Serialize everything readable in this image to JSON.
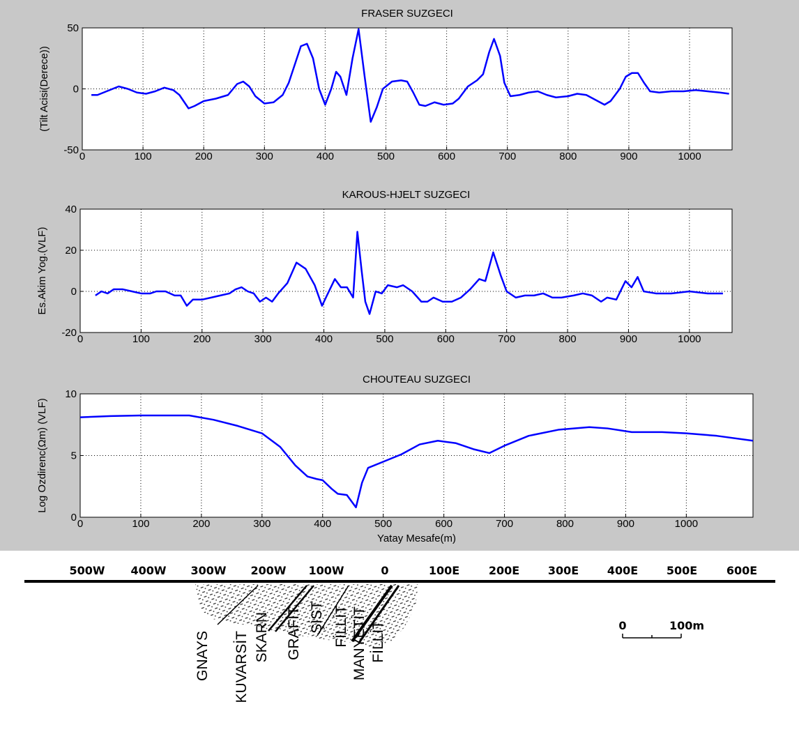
{
  "chart_data": [
    {
      "type": "line",
      "title": "FRASER SUZGECI",
      "ylabel": "(Tilt Acisi(Derece))",
      "color": "#0000ff",
      "grid": true,
      "xlim": [
        0,
        1070
      ],
      "xticks": [
        0,
        100,
        200,
        300,
        400,
        500,
        600,
        700,
        800,
        900,
        1000
      ],
      "ylim": [
        -50,
        50
      ],
      "yticks": [
        -50,
        0,
        50
      ],
      "x": [
        15,
        25,
        40,
        60,
        75,
        90,
        105,
        120,
        135,
        150,
        160,
        175,
        185,
        200,
        220,
        240,
        255,
        265,
        275,
        285,
        300,
        315,
        330,
        340,
        350,
        360,
        370,
        380,
        390,
        400,
        410,
        418,
        425,
        435,
        445,
        455,
        465,
        475,
        485,
        495,
        510,
        525,
        535,
        545,
        555,
        565,
        580,
        595,
        610,
        620,
        635,
        650,
        660,
        670,
        678,
        688,
        695,
        705,
        720,
        735,
        750,
        765,
        780,
        800,
        815,
        830,
        845,
        860,
        870,
        885,
        895,
        905,
        915,
        925,
        935,
        950,
        970,
        990,
        1010,
        1030,
        1050,
        1065
      ],
      "values": [
        -5,
        -5,
        -2,
        2,
        0,
        -3,
        -4,
        -2,
        1,
        -1,
        -5,
        -16,
        -14,
        -10,
        -8,
        -5,
        4,
        6,
        2,
        -6,
        -12,
        -11,
        -5,
        5,
        20,
        35,
        37,
        25,
        0,
        -13,
        0,
        14,
        10,
        -5,
        25,
        49,
        10,
        -27,
        -15,
        0,
        6,
        7,
        6,
        -3,
        -13,
        -14,
        -11,
        -13,
        -12,
        -8,
        2,
        7,
        12,
        30,
        41,
        27,
        5,
        -6,
        -5,
        -3,
        -2,
        -5,
        -7,
        -6,
        -4,
        -5,
        -9,
        -13,
        -10,
        0,
        10,
        13,
        13,
        5,
        -2,
        -3,
        -2,
        -2,
        -1,
        -2,
        -3,
        -4
      ]
    },
    {
      "type": "line",
      "title": "KAROUS-HJELT SUZGECI",
      "ylabel": "Es.Akim Yog.(VLF)",
      "color": "#0000ff",
      "grid": true,
      "xlim": [
        0,
        1070
      ],
      "xticks": [
        0,
        100,
        200,
        300,
        400,
        500,
        600,
        700,
        800,
        900,
        1000
      ],
      "ylim": [
        -20,
        40
      ],
      "yticks": [
        -20,
        0,
        20,
        40
      ],
      "x": [
        25,
        35,
        45,
        55,
        70,
        85,
        100,
        115,
        125,
        140,
        155,
        165,
        175,
        185,
        200,
        215,
        230,
        245,
        255,
        265,
        275,
        285,
        295,
        305,
        315,
        325,
        340,
        355,
        370,
        385,
        397,
        405,
        418,
        428,
        438,
        448,
        455,
        462,
        468,
        475,
        485,
        495,
        505,
        520,
        530,
        545,
        560,
        570,
        580,
        595,
        610,
        625,
        640,
        655,
        665,
        678,
        690,
        700,
        715,
        730,
        745,
        760,
        775,
        790,
        810,
        825,
        840,
        855,
        865,
        880,
        895,
        905,
        915,
        925,
        945,
        970,
        1000,
        1030,
        1055
      ],
      "values": [
        -2,
        0,
        -1,
        1,
        1,
        0,
        -1,
        -1,
        0,
        0,
        -2,
        -2,
        -7,
        -4,
        -4,
        -3,
        -2,
        -1,
        1,
        2,
        0,
        -1,
        -5,
        -3,
        -5,
        -1,
        4,
        14,
        11,
        3,
        -7,
        -2,
        6,
        2,
        2,
        -3,
        29,
        10,
        -5,
        -11,
        0,
        -1,
        3,
        2,
        3,
        0,
        -5,
        -5,
        -3,
        -5,
        -5,
        -3,
        1,
        6,
        5,
        19,
        8,
        0,
        -3,
        -2,
        -2,
        -1,
        -3,
        -3,
        -2,
        -1,
        -2,
        -5,
        -3,
        -4,
        5,
        2,
        7,
        0,
        -1,
        -1,
        0,
        -1,
        -1
      ]
    },
    {
      "type": "line",
      "title": "CHOUTEAU SUZGECI",
      "ylabel": "Log Ozdirenc(Ωm) (VLF)",
      "xlabel": "Yatay Mesafe(m)",
      "color": "#0000ff",
      "grid": true,
      "xlim": [
        0,
        1110
      ],
      "xticks": [
        0,
        100,
        200,
        300,
        400,
        500,
        600,
        700,
        800,
        900,
        1000
      ],
      "ylim": [
        0,
        10
      ],
      "yticks": [
        0,
        5,
        10
      ],
      "x": [
        0,
        50,
        100,
        150,
        180,
        220,
        260,
        300,
        330,
        355,
        375,
        390,
        400,
        415,
        425,
        440,
        455,
        465,
        475,
        500,
        530,
        560,
        590,
        620,
        650,
        675,
        700,
        740,
        790,
        840,
        870,
        910,
        960,
        1000,
        1050,
        1110
      ],
      "values": [
        8.1,
        8.2,
        8.25,
        8.25,
        8.25,
        7.9,
        7.4,
        6.8,
        5.7,
        4.2,
        3.3,
        3.1,
        3.0,
        2.3,
        1.9,
        1.8,
        0.8,
        2.8,
        4.0,
        4.5,
        5.1,
        5.9,
        6.2,
        6.0,
        5.5,
        5.2,
        5.8,
        6.6,
        7.1,
        7.3,
        7.2,
        6.9,
        6.9,
        6.8,
        6.6,
        6.2
      ]
    }
  ],
  "section": {
    "distance_labels": [
      "500W",
      "400W",
      "300W",
      "200W",
      "100W",
      "0",
      "100E",
      "200E",
      "300E",
      "400E",
      "500E",
      "600E"
    ],
    "rock_labels": [
      "GNAYS",
      "KUVARSİT",
      "SKARN",
      "GRAFİT",
      "ŞİST",
      "FİLLİT",
      "MANYETİT",
      "FİLLİT"
    ],
    "scale_bar": {
      "start": "0",
      "end": "100m"
    }
  }
}
